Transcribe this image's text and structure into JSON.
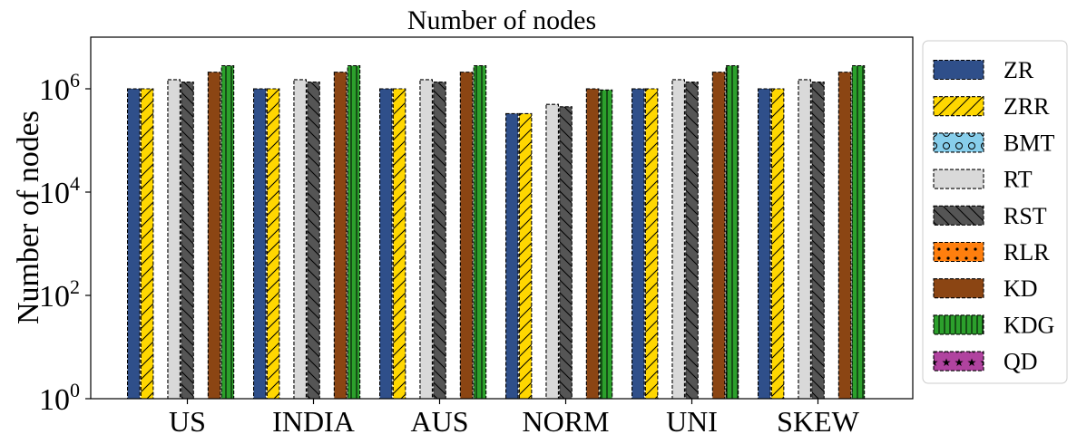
{
  "chart_data": {
    "type": "bar",
    "title": "Number of nodes",
    "xlabel": "",
    "ylabel": "Number of nodes",
    "yscale": "log",
    "ylim": [
      1,
      10000000
    ],
    "yticks": [
      {
        "value": 1,
        "base": "10",
        "exp": "0"
      },
      {
        "value": 100,
        "base": "10",
        "exp": "2"
      },
      {
        "value": 10000,
        "base": "10",
        "exp": "4"
      },
      {
        "value": 1000000,
        "base": "10",
        "exp": "6"
      }
    ],
    "grid": false,
    "legend_position": "outside-right",
    "categories": [
      "US",
      "INDIA",
      "AUS",
      "NORM",
      "UNI",
      "SKEW"
    ],
    "series": [
      {
        "name": "ZR",
        "color": "#2f4f8a",
        "hatch": "none",
        "values": [
          1000000,
          1000000,
          1000000,
          330000,
          1000000,
          1000000
        ]
      },
      {
        "name": "ZRR",
        "color": "#ffd700",
        "hatch": "slash",
        "values": [
          1000000,
          1000000,
          1000000,
          330000,
          1000000,
          1000000
        ]
      },
      {
        "name": "BMT",
        "color": "#87ceeb",
        "hatch": "circle",
        "values": [
          null,
          null,
          null,
          null,
          null,
          null
        ]
      },
      {
        "name": "RT",
        "color": "#d9d9d9",
        "hatch": "none",
        "values": [
          1500000,
          1500000,
          1500000,
          500000,
          1500000,
          1500000
        ]
      },
      {
        "name": "RST",
        "color": "#555555",
        "hatch": "backslash",
        "values": [
          1350000,
          1350000,
          1350000,
          450000,
          1350000,
          1350000
        ]
      },
      {
        "name": "RLR",
        "color": "#ff7f0e",
        "hatch": "dot",
        "values": [
          null,
          null,
          null,
          null,
          null,
          null
        ]
      },
      {
        "name": "KD",
        "color": "#8b4513",
        "hatch": "none",
        "values": [
          2100000,
          2100000,
          2100000,
          1000000,
          2100000,
          2100000
        ]
      },
      {
        "name": "KDG",
        "color": "#2ca02c",
        "hatch": "vertical",
        "values": [
          2800000,
          2800000,
          2800000,
          950000,
          2800000,
          2800000
        ]
      },
      {
        "name": "QD",
        "color": "#b0439f",
        "hatch": "star",
        "values": [
          null,
          null,
          null,
          null,
          null,
          null
        ]
      }
    ]
  }
}
